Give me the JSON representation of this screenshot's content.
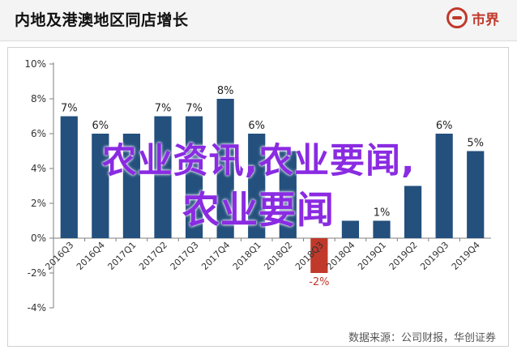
{
  "header": {
    "title": "内地及港澳地区同店增长",
    "logo_text": "市界"
  },
  "watermark": {
    "line1": "农业资讯,农业要闻,",
    "line2": "农业要闻"
  },
  "source": "数据来源：公司财报，华创证券",
  "colors": {
    "bar": "#23507d",
    "bar_negative": "#c0392b",
    "axis": "#7f7f7f",
    "watermark": "#8a2be2"
  },
  "chart_data": {
    "type": "bar",
    "categories": [
      "2016Q3",
      "2016Q4",
      "2017Q1",
      "2017Q2",
      "2017Q3",
      "2017Q4",
      "2018Q1",
      "2018Q2",
      "2018Q3",
      "2018Q4",
      "2019Q1",
      "2019Q2",
      "2019Q3",
      "2019Q4"
    ],
    "values": [
      7,
      6,
      6,
      7,
      7,
      8,
      6,
      5,
      -2,
      1,
      1,
      3,
      6,
      5
    ],
    "data_labels": [
      "7%",
      "6%",
      "",
      "7%",
      "7%",
      "8%",
      "6%",
      "",
      "-2%",
      "",
      "1%",
      "",
      "6%",
      "5%"
    ],
    "yticks": [
      "10%",
      "8%",
      "6%",
      "4%",
      "2%",
      "0%",
      "-2%",
      "-4%"
    ],
    "ylim": [
      -4,
      10
    ],
    "grid": false,
    "title": "内地及港澳地区同店增长"
  }
}
